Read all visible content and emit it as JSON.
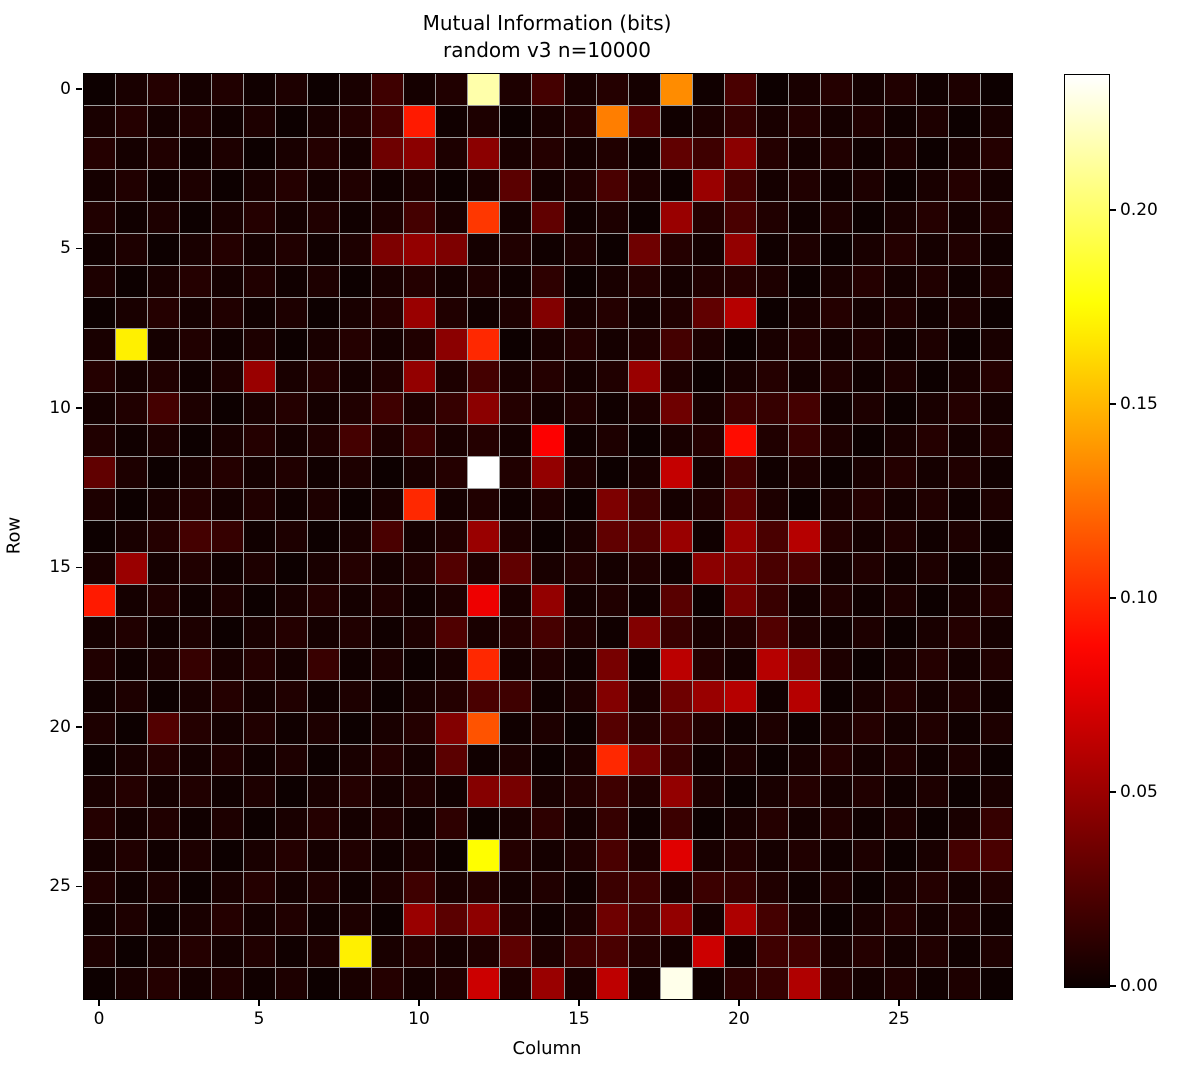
{
  "title": {
    "line1": "Mutual Information (bits)",
    "line2": "random v3 n=10000"
  },
  "chart_data": {
    "type": "heatmap",
    "title": "Mutual Information (bits)",
    "subtitle": "random v3 n=10000",
    "xlabel": "Column",
    "ylabel": "Row",
    "n_rows": 29,
    "n_cols": 29,
    "x_ticks": [
      0,
      5,
      10,
      15,
      20,
      25
    ],
    "x_tick_labels": [
      "0",
      "5",
      "10",
      "15",
      "20",
      "25"
    ],
    "y_ticks": [
      0,
      5,
      10,
      15,
      20,
      25
    ],
    "y_tick_labels": [
      "0",
      "5",
      "10",
      "15",
      "20",
      "25"
    ],
    "colormap": "hot",
    "vmin": 0.0,
    "vmax": 0.235,
    "colorbar_tick_values": [
      0.0,
      0.05,
      0.1,
      0.15,
      0.2
    ],
    "colorbar_tick_labels": [
      "0.00",
      "0.05",
      "0.10",
      "0.15",
      "0.20"
    ],
    "gridline_color": "#9e9e9e",
    "background_value_range": [
      0.001,
      0.009
    ],
    "cells_format": [
      "row",
      "col",
      "value_bits"
    ],
    "cells": [
      [
        0,
        9,
        0.018
      ],
      [
        0,
        12,
        0.215
      ],
      [
        0,
        14,
        0.02
      ],
      [
        0,
        18,
        0.135
      ],
      [
        0,
        20,
        0.022
      ],
      [
        1,
        9,
        0.02
      ],
      [
        1,
        10,
        0.095
      ],
      [
        1,
        16,
        0.13
      ],
      [
        1,
        17,
        0.025
      ],
      [
        1,
        20,
        0.015
      ],
      [
        2,
        9,
        0.035
      ],
      [
        2,
        10,
        0.045
      ],
      [
        2,
        12,
        0.045
      ],
      [
        2,
        18,
        0.03
      ],
      [
        2,
        19,
        0.018
      ],
      [
        2,
        20,
        0.045
      ],
      [
        3,
        13,
        0.028
      ],
      [
        3,
        16,
        0.022
      ],
      [
        3,
        19,
        0.05
      ],
      [
        3,
        20,
        0.02
      ],
      [
        4,
        10,
        0.02
      ],
      [
        4,
        12,
        0.105
      ],
      [
        4,
        14,
        0.03
      ],
      [
        4,
        18,
        0.05
      ],
      [
        4,
        20,
        0.022
      ],
      [
        5,
        9,
        0.04
      ],
      [
        5,
        10,
        0.048
      ],
      [
        5,
        11,
        0.04
      ],
      [
        5,
        17,
        0.035
      ],
      [
        5,
        20,
        0.048
      ],
      [
        6,
        14,
        0.012
      ],
      [
        6,
        20,
        0.01
      ],
      [
        7,
        10,
        0.05
      ],
      [
        7,
        14,
        0.042
      ],
      [
        7,
        19,
        0.03
      ],
      [
        7,
        20,
        0.06
      ],
      [
        8,
        1,
        0.17
      ],
      [
        8,
        11,
        0.045
      ],
      [
        8,
        12,
        0.1
      ],
      [
        8,
        18,
        0.02
      ],
      [
        9,
        5,
        0.05
      ],
      [
        9,
        10,
        0.048
      ],
      [
        9,
        12,
        0.02
      ],
      [
        9,
        17,
        0.05
      ],
      [
        10,
        2,
        0.02
      ],
      [
        10,
        9,
        0.018
      ],
      [
        10,
        11,
        0.015
      ],
      [
        10,
        12,
        0.045
      ],
      [
        10,
        18,
        0.035
      ],
      [
        10,
        20,
        0.018
      ],
      [
        10,
        21,
        0.015
      ],
      [
        10,
        22,
        0.02
      ],
      [
        11,
        8,
        0.02
      ],
      [
        11,
        10,
        0.018
      ],
      [
        11,
        14,
        0.085
      ],
      [
        11,
        20,
        0.09
      ],
      [
        11,
        22,
        0.016
      ],
      [
        12,
        0,
        0.03
      ],
      [
        12,
        12,
        0.235
      ],
      [
        12,
        14,
        0.048
      ],
      [
        12,
        18,
        0.065
      ],
      [
        12,
        20,
        0.02
      ],
      [
        13,
        10,
        0.1
      ],
      [
        13,
        16,
        0.04
      ],
      [
        13,
        17,
        0.018
      ],
      [
        13,
        20,
        0.03
      ],
      [
        14,
        3,
        0.02
      ],
      [
        14,
        4,
        0.015
      ],
      [
        14,
        9,
        0.022
      ],
      [
        14,
        12,
        0.05
      ],
      [
        14,
        16,
        0.03
      ],
      [
        14,
        17,
        0.025
      ],
      [
        14,
        18,
        0.05
      ],
      [
        14,
        20,
        0.05
      ],
      [
        14,
        21,
        0.022
      ],
      [
        14,
        22,
        0.06
      ],
      [
        15,
        1,
        0.05
      ],
      [
        15,
        11,
        0.025
      ],
      [
        15,
        13,
        0.03
      ],
      [
        15,
        19,
        0.045
      ],
      [
        15,
        20,
        0.042
      ],
      [
        15,
        21,
        0.022
      ],
      [
        15,
        22,
        0.022
      ],
      [
        16,
        0,
        0.095
      ],
      [
        16,
        12,
        0.08
      ],
      [
        16,
        14,
        0.048
      ],
      [
        16,
        18,
        0.027
      ],
      [
        16,
        20,
        0.038
      ],
      [
        16,
        21,
        0.016
      ],
      [
        17,
        11,
        0.024
      ],
      [
        17,
        14,
        0.021
      ],
      [
        17,
        17,
        0.042
      ],
      [
        17,
        18,
        0.016
      ],
      [
        17,
        21,
        0.025
      ],
      [
        18,
        3,
        0.015
      ],
      [
        18,
        7,
        0.016
      ],
      [
        18,
        12,
        0.1
      ],
      [
        18,
        16,
        0.038
      ],
      [
        18,
        18,
        0.062
      ],
      [
        18,
        21,
        0.06
      ],
      [
        18,
        22,
        0.045
      ],
      [
        19,
        12,
        0.022
      ],
      [
        19,
        13,
        0.018
      ],
      [
        19,
        16,
        0.042
      ],
      [
        19,
        18,
        0.035
      ],
      [
        19,
        19,
        0.05
      ],
      [
        19,
        20,
        0.06
      ],
      [
        19,
        22,
        0.06
      ],
      [
        20,
        2,
        0.025
      ],
      [
        20,
        11,
        0.042
      ],
      [
        20,
        12,
        0.115
      ],
      [
        20,
        16,
        0.026
      ],
      [
        20,
        18,
        0.02
      ],
      [
        21,
        11,
        0.028
      ],
      [
        21,
        16,
        0.1
      ],
      [
        21,
        17,
        0.036
      ],
      [
        21,
        18,
        0.016
      ],
      [
        22,
        12,
        0.043
      ],
      [
        22,
        13,
        0.038
      ],
      [
        22,
        16,
        0.018
      ],
      [
        22,
        18,
        0.048
      ],
      [
        23,
        11,
        0.012
      ],
      [
        23,
        14,
        0.012
      ],
      [
        23,
        16,
        0.015
      ],
      [
        23,
        18,
        0.017
      ],
      [
        23,
        28,
        0.015
      ],
      [
        24,
        12,
        0.175
      ],
      [
        24,
        16,
        0.022
      ],
      [
        24,
        18,
        0.075
      ],
      [
        24,
        27,
        0.02
      ],
      [
        24,
        28,
        0.022
      ],
      [
        25,
        10,
        0.018
      ],
      [
        25,
        16,
        0.017
      ],
      [
        25,
        17,
        0.018
      ],
      [
        25,
        19,
        0.017
      ],
      [
        25,
        20,
        0.015
      ],
      [
        26,
        10,
        0.05
      ],
      [
        26,
        11,
        0.028
      ],
      [
        26,
        12,
        0.046
      ],
      [
        26,
        16,
        0.035
      ],
      [
        26,
        17,
        0.018
      ],
      [
        26,
        18,
        0.048
      ],
      [
        26,
        20,
        0.057
      ],
      [
        26,
        21,
        0.02
      ],
      [
        27,
        8,
        0.17
      ],
      [
        27,
        13,
        0.029
      ],
      [
        27,
        15,
        0.019
      ],
      [
        27,
        16,
        0.022
      ],
      [
        27,
        19,
        0.068
      ],
      [
        27,
        21,
        0.018
      ],
      [
        27,
        22,
        0.019
      ],
      [
        28,
        12,
        0.068
      ],
      [
        28,
        14,
        0.05
      ],
      [
        28,
        16,
        0.063
      ],
      [
        28,
        18,
        0.23
      ],
      [
        28,
        20,
        0.012
      ],
      [
        28,
        21,
        0.015
      ],
      [
        28,
        22,
        0.058
      ]
    ]
  }
}
